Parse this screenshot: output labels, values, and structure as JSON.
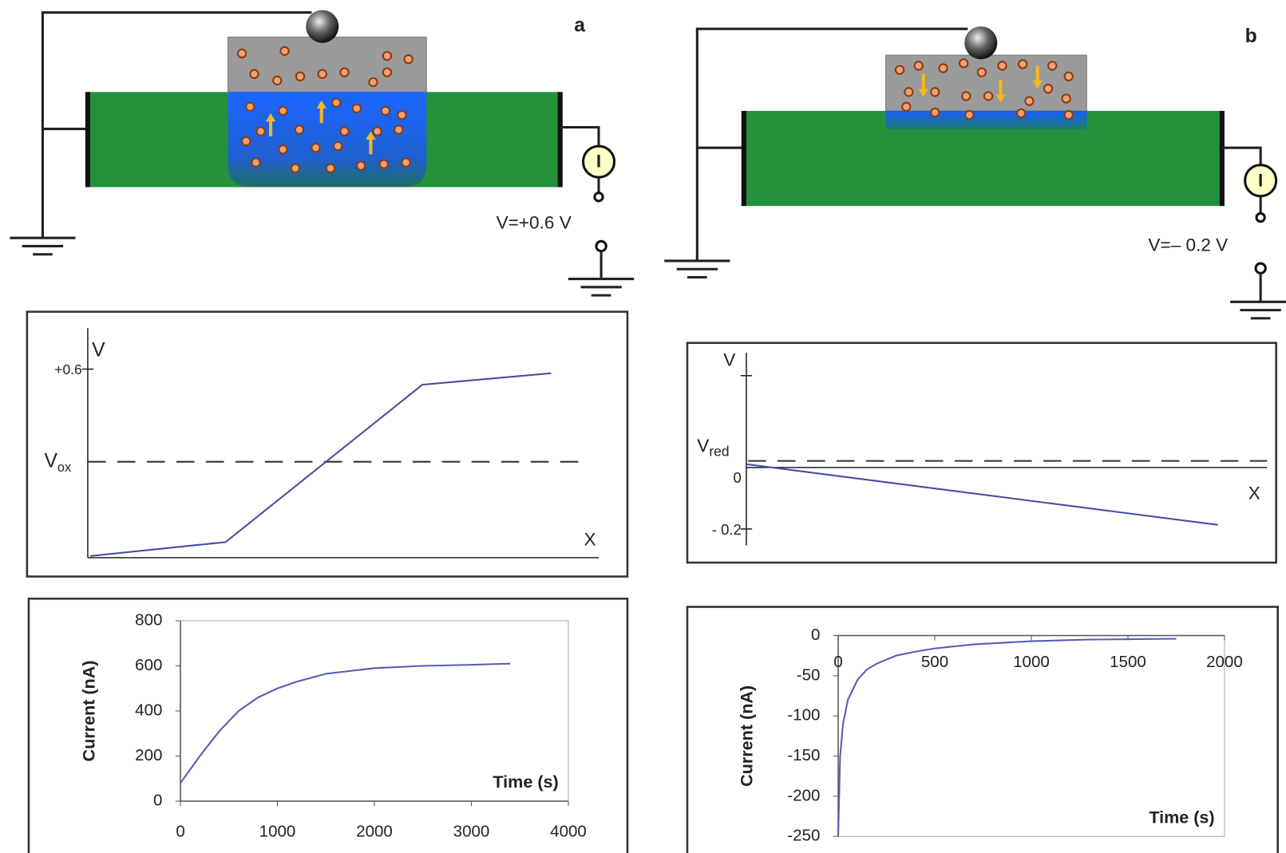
{
  "panel_a": {
    "label": "a",
    "voltage": "V=+0.6 V",
    "meter": "I",
    "potential_plot": {
      "y_axis": "V",
      "tick": "+0.6",
      "level": "V",
      "level_sub": "ox",
      "x_axis": "X"
    }
  },
  "panel_b": {
    "label": "b",
    "voltage": "V=– 0.2 V",
    "meter": "I",
    "potential_plot": {
      "y_axis": "V",
      "level": "V",
      "level_sub": "red",
      "zero": "0",
      "tick": "- 0.2",
      "x_axis": "X"
    }
  },
  "chart_data": [
    {
      "type": "line",
      "xlabel": "Time (s)",
      "ylabel": "Current (nA)",
      "color": "#5a5ab4",
      "x": [
        0,
        200,
        400,
        600,
        800,
        1000,
        1200,
        1500,
        2000,
        2500,
        3000,
        3400
      ],
      "values": [
        80,
        200,
        310,
        400,
        460,
        500,
        530,
        565,
        590,
        600,
        605,
        610
      ],
      "xlim": [
        0,
        4000
      ],
      "ylim": [
        0,
        800
      ],
      "xticks": [
        0,
        1000,
        2000,
        3000,
        4000
      ],
      "yticks": [
        0,
        200,
        400,
        600,
        800
      ]
    },
    {
      "type": "line",
      "xlabel": "Time (s)",
      "ylabel": "Current (nA)",
      "color": "#5a5ab4",
      "x": [
        0,
        10,
        25,
        50,
        100,
        150,
        200,
        300,
        400,
        500,
        700,
        1000,
        1300,
        1750
      ],
      "values": [
        -250,
        -150,
        -110,
        -80,
        -55,
        -42,
        -35,
        -25,
        -20,
        -16,
        -11,
        -7,
        -5,
        -4
      ],
      "xlim": [
        0,
        2000
      ],
      "ylim": [
        -250,
        0
      ],
      "xticks": [
        0,
        500,
        1000,
        1500,
        2000
      ],
      "yticks": [
        0,
        -50,
        -100,
        -150,
        -200,
        -250
      ]
    }
  ]
}
